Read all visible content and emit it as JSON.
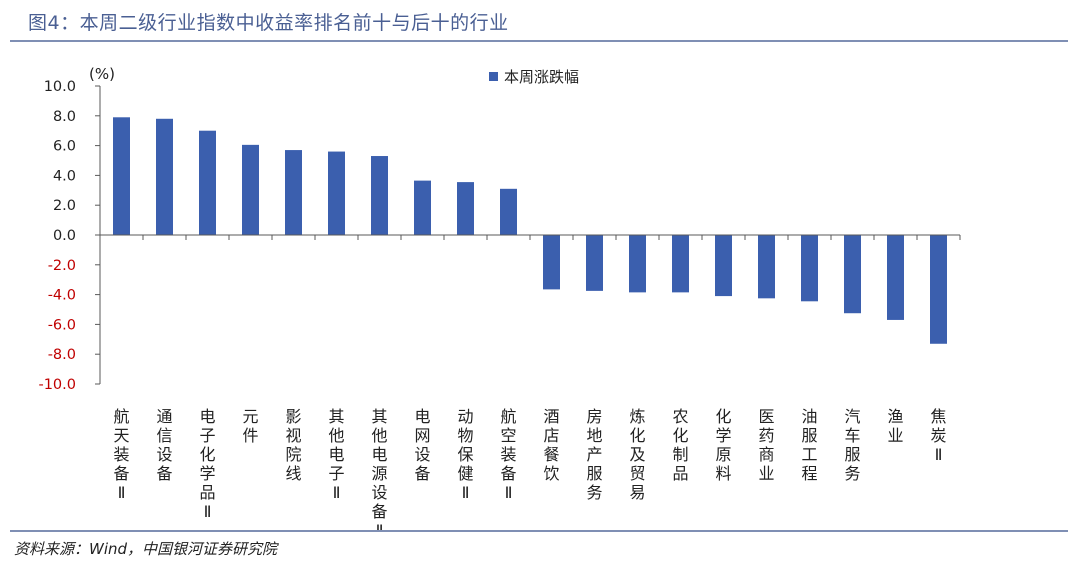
{
  "title": "图4：本周二级行业指数中收益率排名前十与后十的行业",
  "source": "资料来源：Wind，中国银河证券研究院",
  "colors": {
    "bar": "#3b5fae",
    "axis": "#595959",
    "tick_label": "#c00000",
    "title": "#4a5f93"
  },
  "chart_data": {
    "type": "bar",
    "title": "",
    "unit_label": "(%)",
    "legend": "本周涨跌幅",
    "xlabel": "",
    "ylabel": "(%)",
    "ylim": [
      -10,
      10
    ],
    "yticks": [
      10,
      8,
      6,
      4,
      2,
      0,
      -2,
      -4,
      -6,
      -8,
      -10
    ],
    "ytick_labels": [
      "10.0",
      "8.0",
      "6.0",
      "4.0",
      "2.0",
      "0.0",
      "-2.0",
      "-4.0",
      "-6.0",
      "-8.0",
      "-10.0"
    ],
    "categories": [
      "航天装备Ⅱ",
      "通信设备",
      "电子化学品Ⅱ",
      "元件",
      "影视院线",
      "其他电子Ⅱ",
      "其他电源设备Ⅱ",
      "电网设备",
      "动物保健Ⅱ",
      "航空装备Ⅱ",
      "酒店餐饮",
      "房地产服务",
      "炼化及贸易",
      "农化制品",
      "化学原料",
      "医药商业",
      "油服工程",
      "汽车服务",
      "渔业",
      "焦炭Ⅱ"
    ],
    "values": [
      7.9,
      7.8,
      7.0,
      6.05,
      5.7,
      5.6,
      5.3,
      3.65,
      3.55,
      3.1,
      -3.65,
      -3.75,
      -3.85,
      -3.85,
      -4.1,
      -4.25,
      -4.45,
      -5.25,
      -5.7,
      -7.3
    ]
  }
}
